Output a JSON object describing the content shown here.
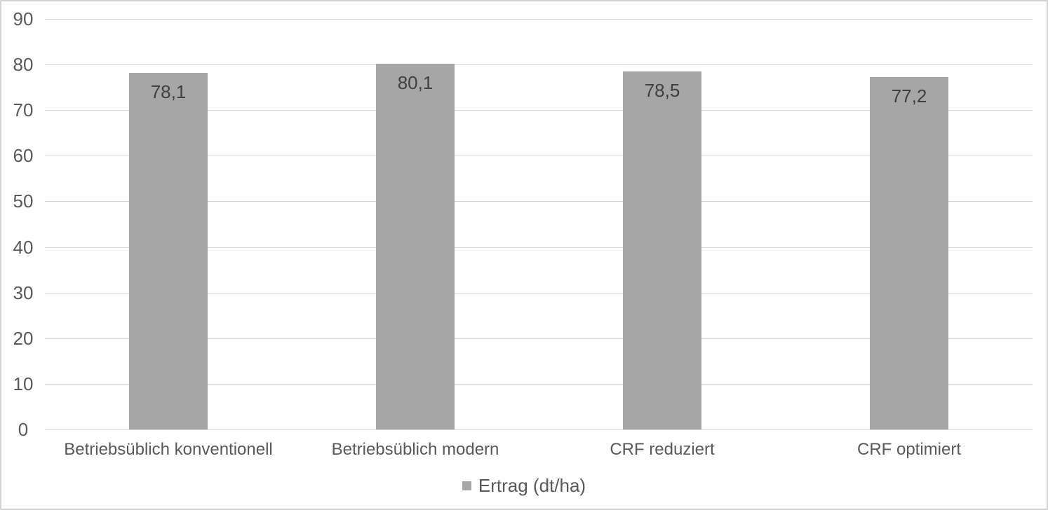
{
  "chart_data": {
    "type": "bar",
    "title": "",
    "categories": [
      "Betriebsüblich konventionell",
      "Betriebsüblich modern",
      "CRF reduziert",
      "CRF optimiert"
    ],
    "values": [
      78.1,
      80.1,
      78.5,
      77.2
    ],
    "value_labels": [
      "78,1",
      "80,1",
      "78,5",
      "77,2"
    ],
    "series_name": "Ertrag (dt/ha)",
    "legend": {
      "label": "Ertrag (dt/ha)",
      "position": "bottom",
      "swatch": "square-icon"
    },
    "xlabel": "",
    "ylabel": "",
    "ylim": [
      0,
      90
    ],
    "yticks": [
      0,
      10,
      20,
      30,
      40,
      50,
      60,
      70,
      80,
      90
    ],
    "grid": true,
    "data_label_position": "inside-end",
    "colors": {
      "bar": "#a6a6a6",
      "gridline": "#d9d9d9",
      "axis_text": "#595959",
      "data_label": "#404040",
      "border": "#d3d3d3",
      "background": "#ffffff"
    }
  }
}
